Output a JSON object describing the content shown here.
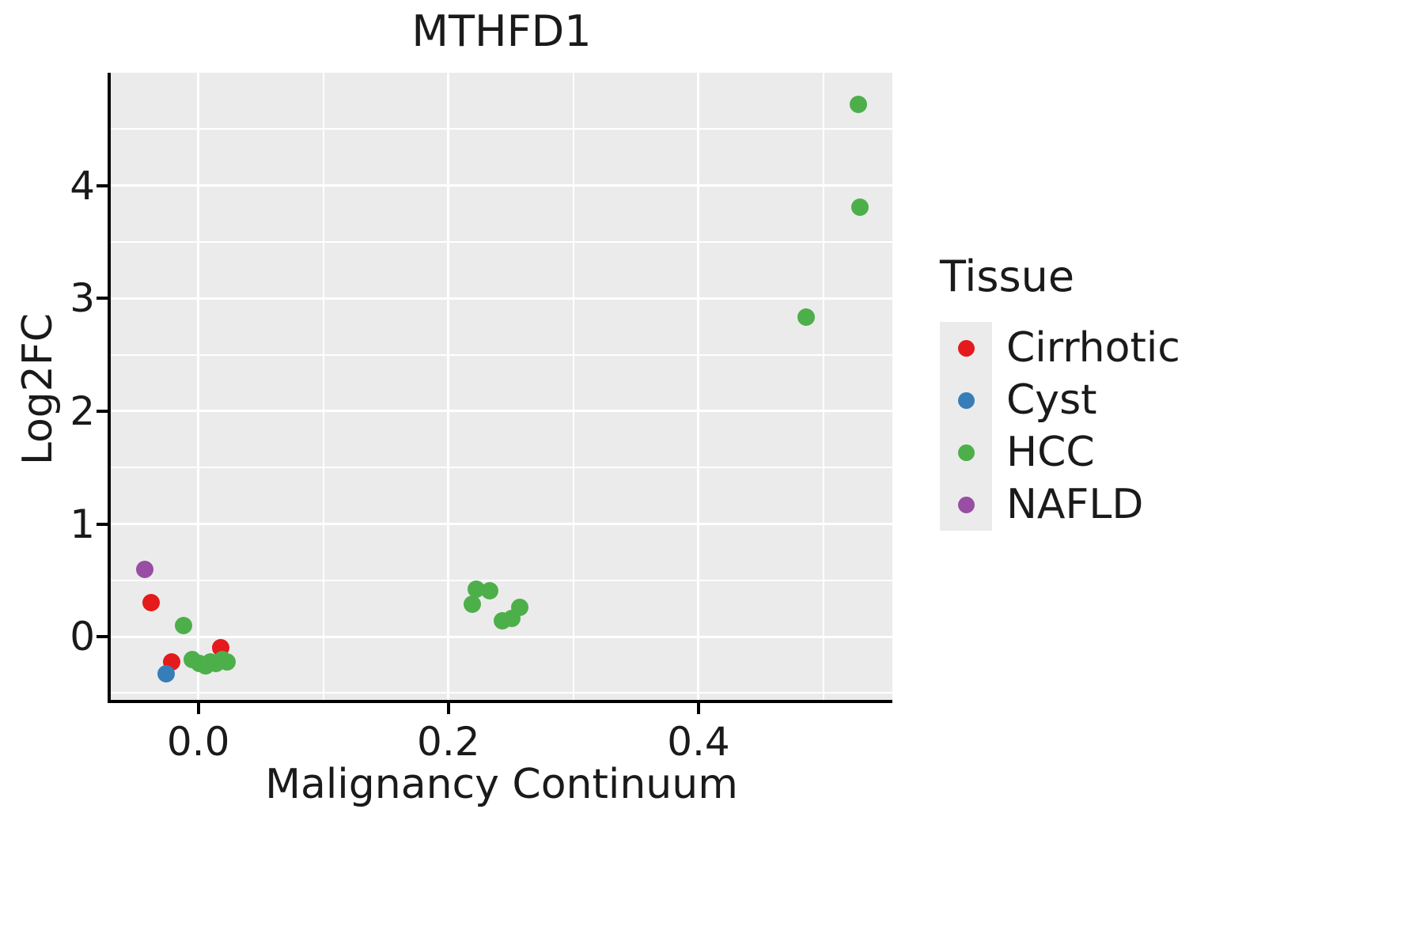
{
  "chart_data": {
    "type": "scatter",
    "title": "MTHFD1",
    "xlabel": "Malignancy Continuum",
    "ylabel": "Log2FC",
    "xlim": [
      -0.07,
      0.555
    ],
    "ylim": [
      -0.56,
      5.0
    ],
    "grid": true,
    "x_ticks": [
      {
        "value": 0.0,
        "label": "0.0"
      },
      {
        "value": 0.2,
        "label": "0.2"
      },
      {
        "value": 0.4,
        "label": "0.4"
      }
    ],
    "y_ticks": [
      {
        "value": 0,
        "label": "0"
      },
      {
        "value": 1,
        "label": "1"
      },
      {
        "value": 2,
        "label": "2"
      },
      {
        "value": 3,
        "label": "3"
      },
      {
        "value": 4,
        "label": "4"
      }
    ],
    "x_minor": [
      0.1,
      0.3,
      0.5
    ],
    "y_minor": [
      -0.5,
      0.5,
      1.5,
      2.5,
      3.5,
      4.5
    ],
    "legend": {
      "title": "Tissue",
      "position": "right"
    },
    "series": [
      {
        "name": "Cirrhotic",
        "color": "#E41A1C",
        "points": [
          [
            -0.038,
            0.3
          ],
          [
            -0.021,
            -0.22
          ],
          [
            0.018,
            -0.1
          ]
        ]
      },
      {
        "name": "Cyst",
        "color": "#377EB8",
        "points": [
          [
            -0.026,
            -0.33
          ]
        ]
      },
      {
        "name": "HCC",
        "color": "#4DAF4A",
        "points": [
          [
            -0.012,
            0.1
          ],
          [
            -0.005,
            -0.2
          ],
          [
            0.001,
            -0.24
          ],
          [
            0.006,
            -0.26
          ],
          [
            0.01,
            -0.22
          ],
          [
            0.014,
            -0.24
          ],
          [
            0.019,
            -0.2
          ],
          [
            0.023,
            -0.22
          ],
          [
            0.222,
            0.42
          ],
          [
            0.233,
            0.41
          ],
          [
            0.219,
            0.29
          ],
          [
            0.243,
            0.14
          ],
          [
            0.251,
            0.16
          ],
          [
            0.257,
            0.26
          ],
          [
            0.486,
            2.83
          ],
          [
            0.528,
            4.72
          ],
          [
            0.529,
            3.81
          ]
        ]
      },
      {
        "name": "NAFLD",
        "color": "#984EA3",
        "points": [
          [
            -0.043,
            0.6
          ]
        ]
      }
    ]
  },
  "colors": {
    "panel_bg": "#EBEBEB",
    "grid": "#FFFFFF",
    "axis": "#000000",
    "text": "#1A1A1A",
    "legend_key_bg": "#EBEBEB"
  }
}
